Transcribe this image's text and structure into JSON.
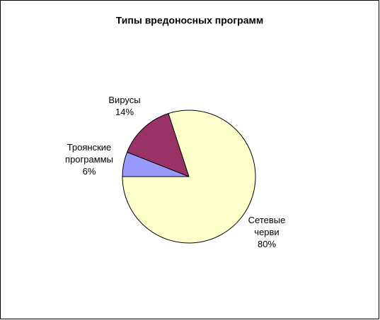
{
  "chart_data": {
    "type": "pie",
    "title": "Типы вредоносных программ",
    "categories": [
      "Троянские программы",
      "Вирусы",
      "Сетевые черви"
    ],
    "values": [
      6,
      14,
      80
    ],
    "value_labels": [
      "6%",
      "14%",
      "80%"
    ],
    "colors": [
      "#9999ff",
      "#993366",
      "#ffffcc"
    ]
  }
}
